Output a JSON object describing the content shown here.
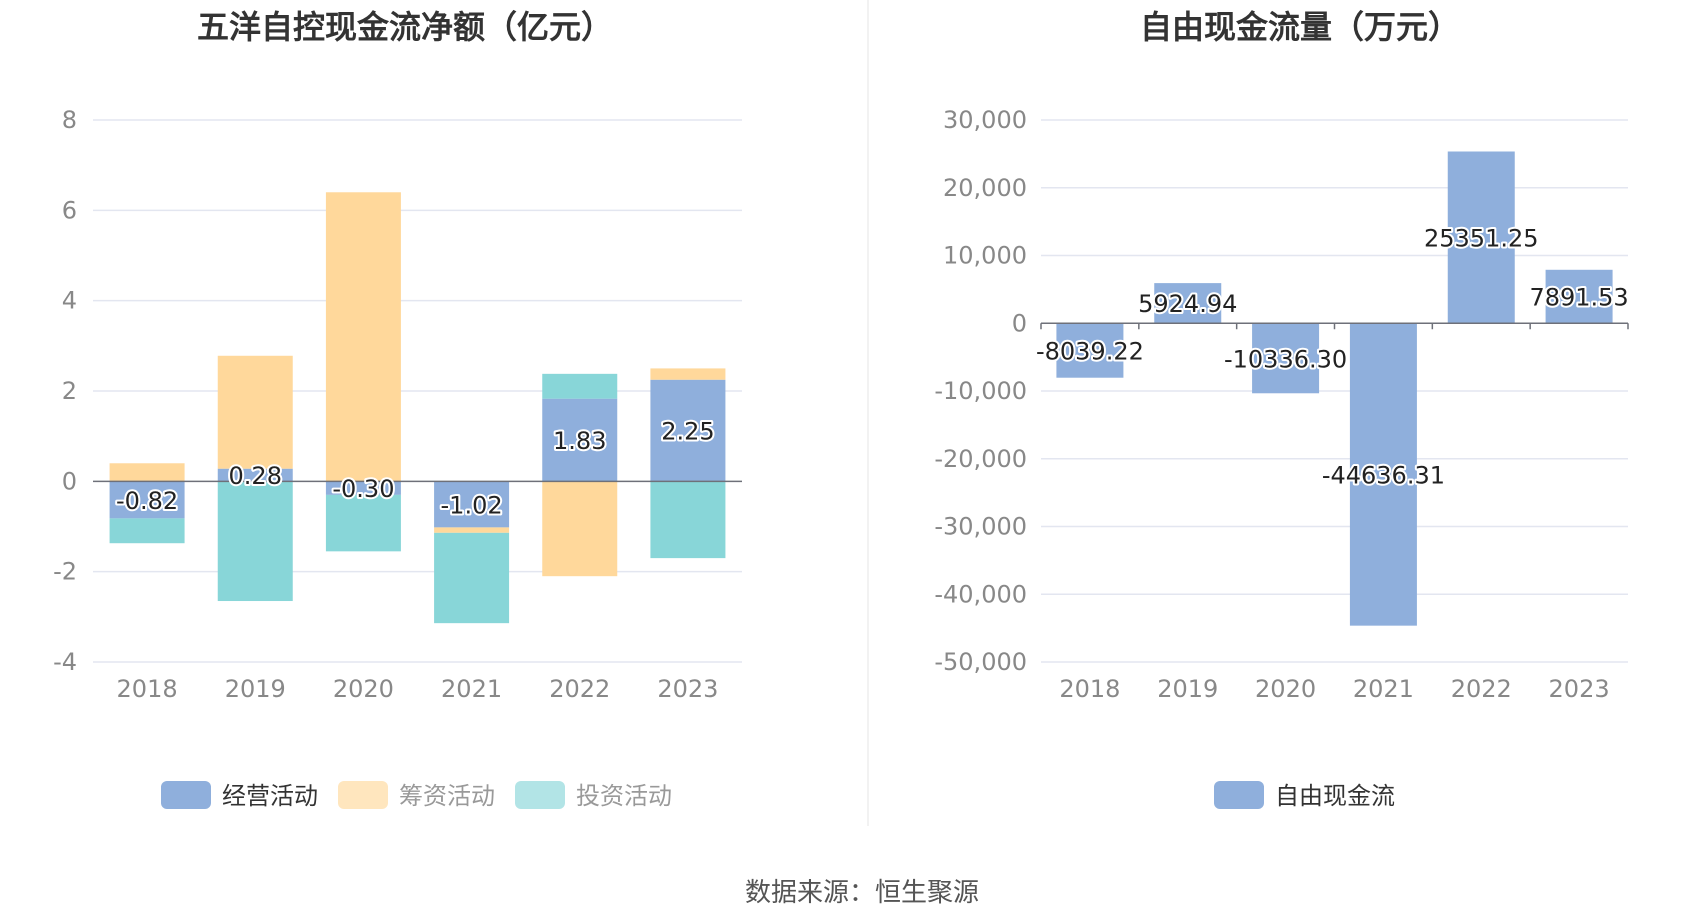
{
  "source_note": "数据来源：恒生聚源",
  "chart_data": [
    {
      "type": "bar",
      "stacked": true,
      "title": "五洋自控现金流净额（亿元）",
      "categories": [
        "2018",
        "2019",
        "2020",
        "2021",
        "2022",
        "2023"
      ],
      "ylim": [
        -4,
        8
      ],
      "yticks": [
        "8",
        "6",
        "4",
        "2",
        "0",
        "-2",
        "-4"
      ],
      "grid": true,
      "legend_position": "bottom",
      "series": [
        {
          "name": "经营活动",
          "color": "#8fafdc",
          "values": [
            -0.82,
            0.28,
            -0.3,
            -1.02,
            1.83,
            2.25
          ],
          "labels": [
            "-0.82",
            "0.28",
            "-0.30",
            "-1.02",
            "1.83",
            "2.25"
          ]
        },
        {
          "name": "筹资活动",
          "color": "#ffd89b",
          "values": [
            0.4,
            2.5,
            6.4,
            -0.12,
            -2.1,
            0.25
          ]
        },
        {
          "name": "投资活动",
          "color": "#88d6d8",
          "values": [
            -0.55,
            -2.65,
            -1.25,
            -2.0,
            0.55,
            -1.7
          ]
        }
      ]
    },
    {
      "type": "bar",
      "title": "自由现金流量（万元）",
      "categories": [
        "2018",
        "2019",
        "2020",
        "2021",
        "2022",
        "2023"
      ],
      "ylim": [
        -50000,
        30000
      ],
      "yticks": [
        "30,000",
        "20,000",
        "10,000",
        "0",
        "-10,000",
        "-20,000",
        "-30,000",
        "-40,000",
        "-50,000"
      ],
      "grid": true,
      "legend_position": "bottom",
      "series": [
        {
          "name": "自由现金流",
          "color": "#8fafdc",
          "values": [
            -8039.22,
            5924.94,
            -10336.3,
            -44636.31,
            25351.25,
            7891.53
          ],
          "labels": [
            "-8039.22",
            "5924.94",
            "-10336.30",
            "-44636.31",
            "25351.25",
            "7891.53"
          ]
        }
      ]
    }
  ]
}
